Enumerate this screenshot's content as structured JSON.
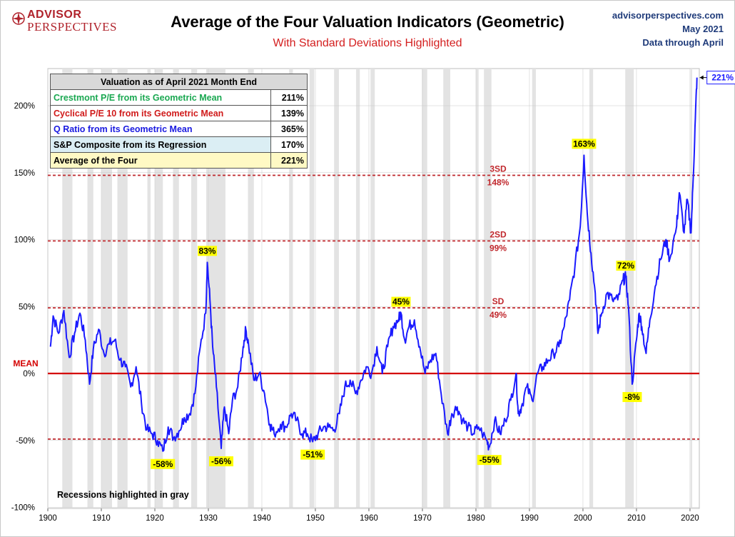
{
  "header": {
    "logo_line1": "ADVISOR",
    "logo_line2": "PERSPECTIVES",
    "title": "Average of the Four Valuation Indicators (Geometric)",
    "subtitle": "With Standard Deviations Highlighted",
    "source_line1": "advisorperspectives.com",
    "source_line2": "May 2021",
    "source_line3": "Data through April"
  },
  "table": {
    "header": "Valuation as of April 2021  Month End",
    "rows": [
      {
        "label": "Crestmont P/E from its Geometric Mean",
        "value": "211%"
      },
      {
        "label": "Cyclical P/E 10 from its Geometric Mean",
        "value": "139%"
      },
      {
        "label": "Q Ratio from its Geometric Mean",
        "value": "365%"
      },
      {
        "label": "S&P Composite from its Regression",
        "value": "170%"
      },
      {
        "label": "Average of the Four",
        "value": "221%"
      }
    ]
  },
  "recession_note": "Recessions highlighted in gray",
  "chart_data": {
    "type": "line",
    "xlim": [
      1900,
      2021.5
    ],
    "ylim": [
      -100,
      225
    ],
    "x_ticks": [
      "1900",
      "1910",
      "1920",
      "1930",
      "1940",
      "1950",
      "1960",
      "1970",
      "1980",
      "1990",
      "2000",
      "2010",
      "2020"
    ],
    "y_ticks": [
      {
        "value": 200,
        "label": "200%"
      },
      {
        "value": 150,
        "label": "150%"
      },
      {
        "value": 100,
        "label": "100%"
      },
      {
        "value": 50,
        "label": "50%"
      },
      {
        "value": 0,
        "label": "0%"
      },
      {
        "value": -50,
        "label": "-50%"
      },
      {
        "value": -100,
        "label": "-100%"
      }
    ],
    "mean_label": "MEAN",
    "reference_lines": [
      {
        "value": 148,
        "label_top": "3SD",
        "label_bottom": "148%"
      },
      {
        "value": 99,
        "label_top": "2SD",
        "label_bottom": "99%"
      },
      {
        "value": 49,
        "label_top": "SD",
        "label_bottom": "49%"
      },
      {
        "value": -49,
        "label_top": "",
        "label_bottom": ""
      }
    ],
    "recessions": [
      [
        1902.7,
        1904.6
      ],
      [
        1907.4,
        1908.5
      ],
      [
        1910.0,
        1912.0
      ],
      [
        1913.0,
        1914.9
      ],
      [
        1918.6,
        1919.2
      ],
      [
        1920.0,
        1921.5
      ],
      [
        1923.4,
        1924.5
      ],
      [
        1926.8,
        1927.9
      ],
      [
        1929.6,
        1933.2
      ],
      [
        1937.4,
        1938.5
      ],
      [
        1945.1,
        1945.8
      ],
      [
        1948.9,
        1949.8
      ],
      [
        1953.5,
        1954.4
      ],
      [
        1957.6,
        1958.3
      ],
      [
        1960.3,
        1961.1
      ],
      [
        1969.9,
        1970.9
      ],
      [
        1973.9,
        1975.2
      ],
      [
        1980.0,
        1980.5
      ],
      [
        1981.5,
        1982.9
      ],
      [
        1990.5,
        1991.2
      ],
      [
        2001.2,
        2001.9
      ],
      [
        2007.9,
        2009.5
      ],
      [
        2020.1,
        2020.4
      ]
    ],
    "series": [
      {
        "color": "#1a1aff",
        "points": [
          [
            1900.5,
            20
          ],
          [
            1901.0,
            43
          ],
          [
            1902.0,
            30
          ],
          [
            1903.0,
            47
          ],
          [
            1904.0,
            12
          ],
          [
            1905.0,
            30
          ],
          [
            1906.0,
            45
          ],
          [
            1907.0,
            25
          ],
          [
            1907.8,
            -8
          ],
          [
            1908.5,
            18
          ],
          [
            1909.5,
            33
          ],
          [
            1910.5,
            15
          ],
          [
            1911.5,
            22
          ],
          [
            1912.5,
            25
          ],
          [
            1913.5,
            10
          ],
          [
            1914.5,
            5
          ],
          [
            1915.5,
            -10
          ],
          [
            1916.5,
            5
          ],
          [
            1917.5,
            -22
          ],
          [
            1918.5,
            -42
          ],
          [
            1919.5,
            -45
          ],
          [
            1920.5,
            -50
          ],
          [
            1921.5,
            -58
          ],
          [
            1922.5,
            -40
          ],
          [
            1923.5,
            -48
          ],
          [
            1924.5,
            -43
          ],
          [
            1925.5,
            -33
          ],
          [
            1926.5,
            -30
          ],
          [
            1927.5,
            -15
          ],
          [
            1928.5,
            20
          ],
          [
            1929.5,
            45
          ],
          [
            1929.8,
            83
          ],
          [
            1930.3,
            55
          ],
          [
            1930.8,
            20
          ],
          [
            1931.5,
            -10
          ],
          [
            1932.4,
            -56
          ],
          [
            1933.0,
            -25
          ],
          [
            1933.8,
            -45
          ],
          [
            1934.5,
            -20
          ],
          [
            1935.5,
            -10
          ],
          [
            1936.5,
            20
          ],
          [
            1937.0,
            33
          ],
          [
            1937.5,
            22
          ],
          [
            1938.5,
            -5
          ],
          [
            1939.5,
            0
          ],
          [
            1940.5,
            -15
          ],
          [
            1941.5,
            -38
          ],
          [
            1942.3,
            -45
          ],
          [
            1943.5,
            -38
          ],
          [
            1944.5,
            -40
          ],
          [
            1945.5,
            -30
          ],
          [
            1946.5,
            -35
          ],
          [
            1947.5,
            -45
          ],
          [
            1948.5,
            -45
          ],
          [
            1949.5,
            -51
          ],
          [
            1950.5,
            -45
          ],
          [
            1951.5,
            -40
          ],
          [
            1952.5,
            -40
          ],
          [
            1953.5,
            -42
          ],
          [
            1954.5,
            -30
          ],
          [
            1955.5,
            -10
          ],
          [
            1956.5,
            -5
          ],
          [
            1957.5,
            -15
          ],
          [
            1958.5,
            -5
          ],
          [
            1959.5,
            5
          ],
          [
            1960.5,
            0
          ],
          [
            1961.5,
            20
          ],
          [
            1962.5,
            0
          ],
          [
            1963.5,
            20
          ],
          [
            1964.5,
            35
          ],
          [
            1965.5,
            40
          ],
          [
            1966.0,
            45
          ],
          [
            1966.7,
            25
          ],
          [
            1967.5,
            35
          ],
          [
            1968.5,
            40
          ],
          [
            1969.5,
            20
          ],
          [
            1970.5,
            0
          ],
          [
            1971.5,
            10
          ],
          [
            1972.5,
            15
          ],
          [
            1973.5,
            -15
          ],
          [
            1974.7,
            -45
          ],
          [
            1975.5,
            -30
          ],
          [
            1976.5,
            -25
          ],
          [
            1977.5,
            -35
          ],
          [
            1978.5,
            -40
          ],
          [
            1979.5,
            -45
          ],
          [
            1980.5,
            -40
          ],
          [
            1982.0,
            -50
          ],
          [
            1982.5,
            -55
          ],
          [
            1983.5,
            -35
          ],
          [
            1984.5,
            -45
          ],
          [
            1985.5,
            -35
          ],
          [
            1986.5,
            -20
          ],
          [
            1987.5,
            0
          ],
          [
            1987.9,
            -30
          ],
          [
            1988.5,
            -25
          ],
          [
            1989.5,
            -10
          ],
          [
            1990.5,
            -20
          ],
          [
            1991.5,
            0
          ],
          [
            1992.5,
            5
          ],
          [
            1993.5,
            10
          ],
          [
            1994.5,
            15
          ],
          [
            1995.5,
            20
          ],
          [
            1996.5,
            35
          ],
          [
            1997.5,
            55
          ],
          [
            1998.5,
            80
          ],
          [
            1999.5,
            110
          ],
          [
            2000.2,
            163
          ],
          [
            2000.8,
            120
          ],
          [
            2001.5,
            90
          ],
          [
            2002.3,
            60
          ],
          [
            2002.8,
            30
          ],
          [
            2003.5,
            45
          ],
          [
            2004.5,
            60
          ],
          [
            2005.5,
            55
          ],
          [
            2006.5,
            55
          ],
          [
            2007.5,
            70
          ],
          [
            2008.0,
            72
          ],
          [
            2008.5,
            50
          ],
          [
            2009.2,
            -8
          ],
          [
            2010.0,
            25
          ],
          [
            2010.5,
            45
          ],
          [
            2011.0,
            35
          ],
          [
            2011.8,
            15
          ],
          [
            2012.5,
            40
          ],
          [
            2013.5,
            65
          ],
          [
            2014.5,
            85
          ],
          [
            2015.5,
            100
          ],
          [
            2016.2,
            85
          ],
          [
            2017.5,
            110
          ],
          [
            2018.0,
            135
          ],
          [
            2018.9,
            105
          ],
          [
            2019.5,
            130
          ],
          [
            2020.2,
            105
          ],
          [
            2020.6,
            145
          ],
          [
            2021.0,
            190
          ],
          [
            2021.3,
            221
          ]
        ]
      }
    ],
    "annotations": [
      {
        "x": 1921.5,
        "y": -58,
        "text": "-58%"
      },
      {
        "x": 1929.8,
        "y": 83,
        "text": "83%"
      },
      {
        "x": 1932.4,
        "y": -56,
        "text": "-56%"
      },
      {
        "x": 1949.5,
        "y": -51,
        "text": "-51%"
      },
      {
        "x": 1966.0,
        "y": 45,
        "text": "45%"
      },
      {
        "x": 1982.5,
        "y": -55,
        "text": "-55%"
      },
      {
        "x": 2000.2,
        "y": 163,
        "text": "163%"
      },
      {
        "x": 2008.0,
        "y": 72,
        "text": "72%"
      },
      {
        "x": 2009.2,
        "y": -8,
        "text": "-8%"
      }
    ],
    "end_label": "221%",
    "colors": {
      "line": "#1a1aff",
      "mean": "#d40000",
      "sd_dash": "#c0282d",
      "recession": "#e3e3e3",
      "annotation_bg": "#ffff00"
    }
  }
}
